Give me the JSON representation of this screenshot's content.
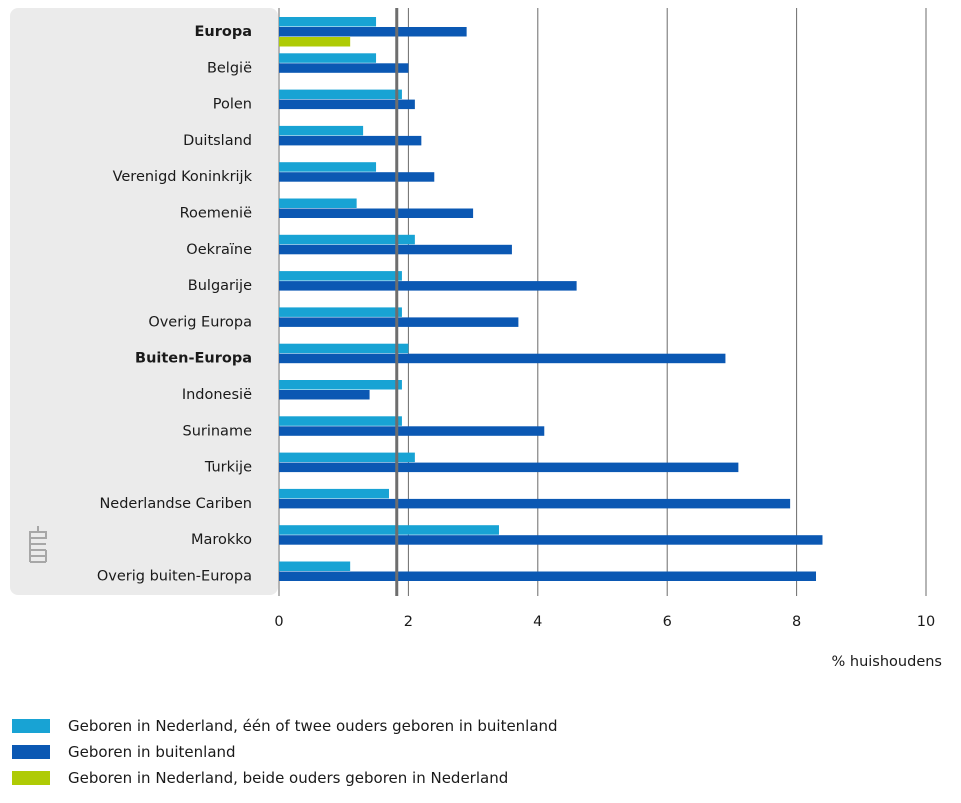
{
  "chart_data": {
    "type": "bar",
    "orientation": "horizontal",
    "categories": [
      "Europa",
      "België",
      "Polen",
      "Duitsland",
      "Verenigd Koninkrijk",
      "Roemenië",
      "Oekraïne",
      "Bulgarije",
      "Overig Europa",
      "Buiten-Europa",
      "Indonesië",
      "Suriname",
      "Turkije",
      "Nederlandse Cariben",
      "Marokko",
      "Overig buiten-Europa"
    ],
    "bold_categories": [
      "Europa",
      "Buiten-Europa"
    ],
    "series": [
      {
        "name": "Geboren in Nederland, één of twee ouders geboren in buitenland",
        "color": "#18a3d4",
        "values": [
          1.5,
          1.5,
          1.9,
          1.3,
          1.5,
          1.2,
          2.1,
          1.9,
          1.9,
          2.0,
          1.9,
          1.9,
          2.1,
          1.7,
          3.4,
          1.1
        ]
      },
      {
        "name": "Geboren in buitenland",
        "color": "#0b58b3",
        "values": [
          2.9,
          2.0,
          2.1,
          2.2,
          2.4,
          3.0,
          3.6,
          4.6,
          3.7,
          6.9,
          1.4,
          4.1,
          7.1,
          7.9,
          8.4,
          8.3
        ]
      },
      {
        "name": "Geboren in Nederland, beide ouders geboren in Nederland",
        "color": "#afcb05",
        "values": [
          1.1,
          null,
          null,
          null,
          null,
          null,
          null,
          null,
          null,
          null,
          null,
          null,
          null,
          null,
          null,
          null
        ]
      }
    ],
    "reference_line": 1.82,
    "xlim": [
      0,
      10
    ],
    "xticks": [
      "0",
      "2",
      "4",
      "6",
      "8",
      "10"
    ],
    "xlabel": "% huishoudens",
    "ylabel": "",
    "title": "",
    "grid": true,
    "legend_position": "bottom-left"
  },
  "logo_text": "cbs"
}
